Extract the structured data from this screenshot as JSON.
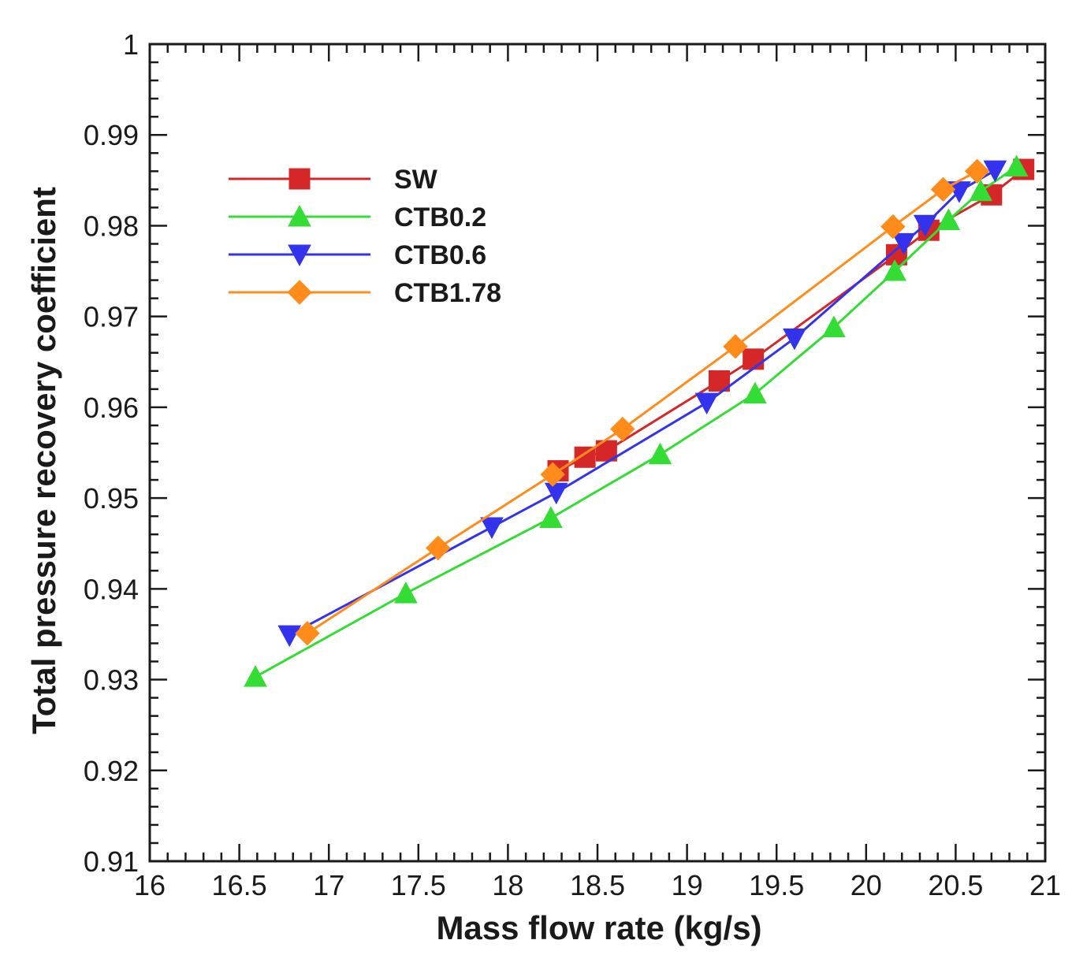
{
  "chart_data": {
    "type": "line",
    "title": "",
    "xlabel": "Mass flow rate (kg/s)",
    "ylabel": "Total pressure recovery coefficient",
    "xlim": [
      16,
      21
    ],
    "ylim": [
      0.91,
      1.0
    ],
    "x_ticks": [
      "16",
      "16.5",
      "17",
      "17.5",
      "18",
      "18.5",
      "19",
      "19.5",
      "20",
      "20.5",
      "21"
    ],
    "y_ticks": [
      "0.91",
      "0.92",
      "0.93",
      "0.94",
      "0.95",
      "0.96",
      "0.97",
      "0.98",
      "0.99",
      "1"
    ],
    "x_minor_step": 0.1,
    "y_minor_step": 0.002,
    "grid": false,
    "legend_position": "upper-left",
    "series": [
      {
        "name": "SW",
        "color": "#d62728",
        "marker": "square",
        "x": [
          18.28,
          18.43,
          18.55,
          19.18,
          19.37,
          20.17,
          20.35,
          20.7,
          20.88
        ],
        "y": [
          0.953,
          0.9545,
          0.9552,
          0.9629,
          0.9653,
          0.9768,
          0.9795,
          0.9834,
          0.9862
        ]
      },
      {
        "name": "CTB0.2",
        "color": "#33dd33",
        "marker": "triangle-up",
        "x": [
          16.59,
          17.43,
          18.24,
          18.85,
          19.38,
          19.82,
          20.16,
          20.46,
          20.64,
          20.84
        ],
        "y": [
          0.9303,
          0.9395,
          0.9478,
          0.9548,
          0.9615,
          0.9688,
          0.975,
          0.9806,
          0.9838,
          0.9865
        ]
      },
      {
        "name": "CTB0.6",
        "color": "#3333ee",
        "marker": "triangle-down",
        "x": [
          16.78,
          17.91,
          18.27,
          19.11,
          19.6,
          20.21,
          20.33,
          20.52,
          20.72
        ],
        "y": [
          0.9349,
          0.9468,
          0.9506,
          0.9605,
          0.9676,
          0.9781,
          0.9801,
          0.9838,
          0.9861
        ]
      },
      {
        "name": "CTB1.78",
        "color": "#ff8c1a",
        "marker": "diamond",
        "x": [
          16.88,
          17.61,
          18.25,
          18.64,
          19.27,
          20.15,
          20.43,
          20.62
        ],
        "y": [
          0.9351,
          0.9445,
          0.9526,
          0.9576,
          0.9667,
          0.9799,
          0.984,
          0.986
        ]
      }
    ]
  }
}
